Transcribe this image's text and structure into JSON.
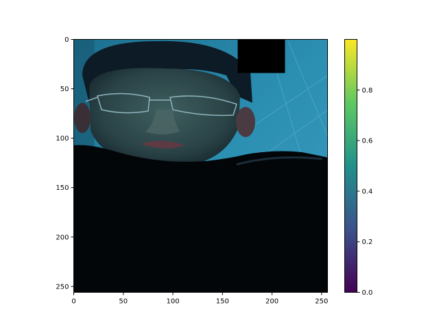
{
  "chart_data": {
    "type": "heatmap",
    "title": "",
    "xlabel": "",
    "ylabel": "",
    "image_description_note": "",
    "xlim": [
      0,
      255
    ],
    "ylim": [
      255,
      0
    ],
    "x_ticks": [
      0,
      50,
      100,
      150,
      200,
      250
    ],
    "x_tick_labels": [
      "0",
      "50",
      "100",
      "150",
      "200",
      "250"
    ],
    "y_ticks": [
      0,
      50,
      100,
      150,
      200,
      250
    ],
    "y_tick_labels": [
      "0",
      "50",
      "100",
      "150",
      "200",
      "250"
    ],
    "colorbar": {
      "colormap": "viridis",
      "range": [
        0.0,
        1.0
      ],
      "ticks": [
        0.0,
        0.2,
        0.4,
        0.6,
        0.8
      ],
      "tick_labels": [
        "0.0",
        "0.2",
        "0.4",
        "0.6",
        "0.8"
      ],
      "colors": [
        "#440154",
        "#3b528b",
        "#21918c",
        "#5ec962",
        "#fde725"
      ]
    },
    "masked_regions": [
      {
        "x": [
          165,
          212
        ],
        "y": [
          0,
          34
        ],
        "value": 0
      }
    ],
    "colors": {
      "background_blue": "#2a87a8",
      "background_dark": "#0e4a63",
      "skin": "#2f4a4e",
      "hair": "#0c1a24",
      "clothing": "#030608"
    }
  }
}
